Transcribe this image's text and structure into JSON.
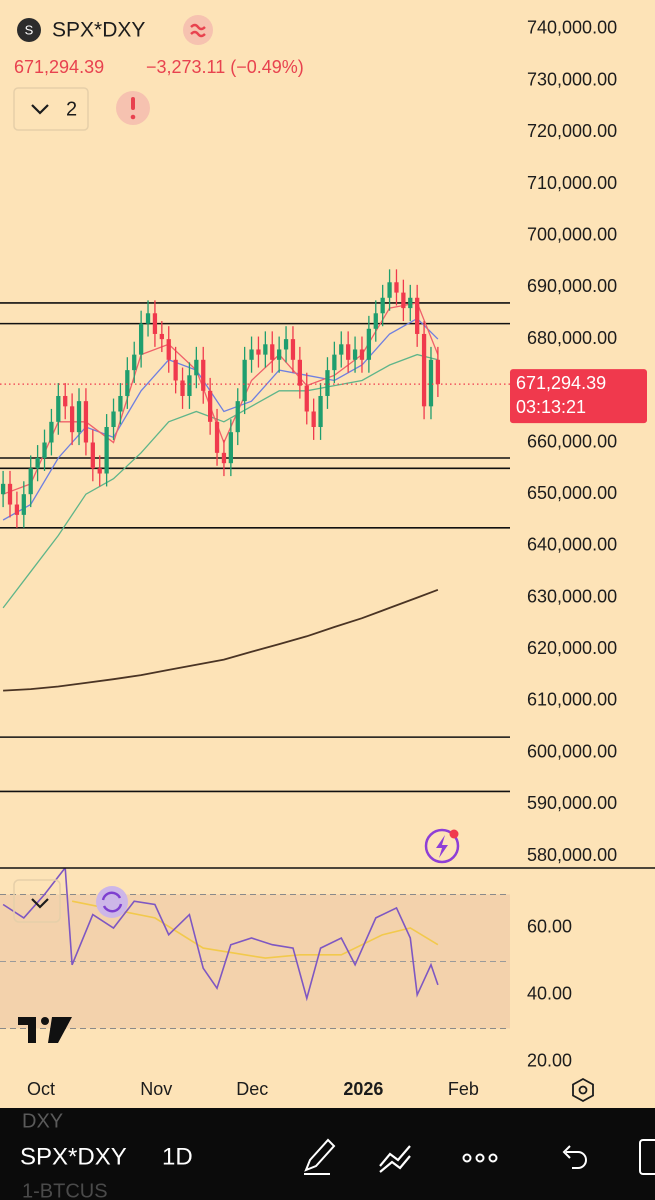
{
  "header": {
    "icon_letter": "S",
    "symbol": "SPX*DXY",
    "change": "−3,273.11 (−0.49%)",
    "indicator_count": "2"
  },
  "chart_data": [
    {
      "type": "candlestick",
      "open": [
        650000,
        652000,
        648000,
        646000,
        650000,
        655000,
        657000,
        660000,
        664000,
        669000,
        667000,
        662000,
        668000,
        660000,
        655000,
        654000,
        663000,
        666000,
        669000,
        674000,
        677000,
        683000,
        685000,
        681000,
        680000,
        676000,
        672000,
        669000,
        673000,
        676000,
        670000,
        664000,
        658000,
        656000,
        662000,
        668000,
        676000,
        678000,
        677000,
        679000,
        676000,
        678000,
        680000,
        676000,
        671000,
        666000,
        663000,
        669000,
        674000,
        677000,
        679000,
        676000,
        678000,
        676000,
        682000,
        685000,
        688000,
        691000,
        689000,
        686000,
        688000,
        681000,
        667000,
        676000
      ],
      "high": [
        654500,
        654500,
        650500,
        652500,
        657500,
        659500,
        662500,
        666500,
        671500,
        671500,
        669500,
        670500,
        670500,
        662500,
        657500,
        665500,
        668500,
        671500,
        676500,
        679500,
        685500,
        687500,
        687500,
        683500,
        682500,
        678500,
        674500,
        675500,
        678500,
        678500,
        672500,
        666500,
        660500,
        664500,
        670500,
        678500,
        680500,
        680500,
        681500,
        681500,
        680500,
        682500,
        682500,
        678500,
        673500,
        668500,
        671500,
        676500,
        679500,
        681500,
        681500,
        680500,
        680500,
        684500,
        687500,
        690500,
        693500,
        693500,
        691500,
        690500,
        690500,
        683500,
        678500,
        678500
      ],
      "low": [
        647500,
        645500,
        643500,
        643500,
        647500,
        652500,
        654500,
        657500,
        661500,
        664500,
        659500,
        659500,
        657500,
        652500,
        651500,
        651500,
        660500,
        663500,
        666500,
        671500,
        674500,
        680500,
        678500,
        677500,
        673500,
        669500,
        666500,
        666500,
        670500,
        667500,
        661500,
        655500,
        653500,
        653500,
        659500,
        665500,
        673500,
        674500,
        674500,
        673500,
        673500,
        675500,
        673500,
        668500,
        663500,
        660500,
        660500,
        666500,
        671500,
        674500,
        673500,
        673500,
        673500,
        673500,
        679500,
        682500,
        685500,
        686500,
        683500,
        683500,
        678500,
        664500,
        664500,
        668800
      ],
      "close": [
        652000,
        648000,
        646000,
        650000,
        655000,
        657000,
        660000,
        664000,
        669000,
        667000,
        662000,
        668000,
        660000,
        655000,
        654000,
        663000,
        666000,
        669000,
        674000,
        677000,
        683000,
        685000,
        681000,
        680000,
        676000,
        672000,
        669000,
        673000,
        676000,
        670000,
        664000,
        658000,
        656000,
        662000,
        668000,
        676000,
        678000,
        677000,
        679000,
        676000,
        678000,
        680000,
        676000,
        671000,
        666000,
        663000,
        669000,
        674000,
        677000,
        679000,
        676000,
        678000,
        676000,
        682000,
        685000,
        688000,
        691000,
        689000,
        686000,
        688000,
        681000,
        667000,
        676000,
        671294.39
      ],
      "up_color": "#1f9e6e",
      "down_color": "#f0394d",
      "lines": [
        {
          "color": "#f0606a",
          "x": [
            0,
            4,
            8,
            12,
            16,
            20,
            24,
            28,
            32,
            36,
            40,
            44,
            48,
            52,
            56,
            60,
            63
          ],
          "values": [
            650000,
            652000,
            664000,
            664000,
            660000,
            677000,
            679000,
            674000,
            660000,
            672000,
            677000,
            671000,
            673000,
            677000,
            686000,
            687000,
            677000
          ]
        },
        {
          "color": "#6f7fe0",
          "x": [
            0,
            4,
            8,
            12,
            16,
            20,
            24,
            28,
            32,
            36,
            40,
            44,
            48,
            52,
            56,
            60,
            63
          ],
          "values": [
            645000,
            648000,
            657000,
            663000,
            661000,
            670000,
            676000,
            674000,
            666000,
            668000,
            674000,
            673000,
            672000,
            675000,
            681000,
            684000,
            680000
          ]
        },
        {
          "color": "#5fb58a",
          "x": [
            0,
            4,
            8,
            12,
            16,
            20,
            24,
            28,
            32,
            36,
            40,
            44,
            48,
            52,
            56,
            60,
            63
          ],
          "values": [
            628000,
            635000,
            642000,
            650000,
            653000,
            658000,
            664000,
            666000,
            664000,
            667000,
            670000,
            670000,
            671000,
            672000,
            675000,
            677000,
            676000
          ]
        },
        {
          "color": "#4a3424",
          "x": [
            0,
            4,
            8,
            12,
            16,
            20,
            24,
            28,
            32,
            36,
            40,
            44,
            48,
            52,
            56,
            60,
            63
          ],
          "values": [
            612000,
            612300,
            612800,
            613500,
            614200,
            615000,
            616000,
            617000,
            618000,
            619500,
            621000,
            622500,
            624300,
            626000,
            628000,
            630000,
            631500
          ]
        }
      ],
      "levels": [
        687000,
        683000,
        657000,
        655000,
        643500,
        603000,
        592500
      ],
      "level_color": "#111111",
      "last_price": {
        "value": 671294.39,
        "label": "671,294.39"
      },
      "countdown": "03:13:21",
      "last_color": "#f0394d",
      "xlim": [
        -0.45,
        73.45
      ],
      "ylim": [
        577680,
        745610
      ],
      "yticks": [
        {
          "value": 740000,
          "label": "740,000.00"
        },
        {
          "value": 730000,
          "label": "730,000.00"
        },
        {
          "value": 720000,
          "label": "720,000.00"
        },
        {
          "value": 710000,
          "label": "710,000.00"
        },
        {
          "value": 700000,
          "label": "700,000.00"
        },
        {
          "value": 690000,
          "label": "690,000.00"
        },
        {
          "value": 680000,
          "label": "680,000.00"
        },
        {
          "value": 670000,
          "label": "670,000.00"
        },
        {
          "value": 660000,
          "label": "660,000.00"
        },
        {
          "value": 650000,
          "label": "650,000.00"
        },
        {
          "value": 640000,
          "label": "640,000.00"
        },
        {
          "value": 630000,
          "label": "630,000.00"
        },
        {
          "value": 620000,
          "label": "620,000.00"
        },
        {
          "value": 610000,
          "label": "610,000.00"
        },
        {
          "value": 600000,
          "label": "600,000.00"
        },
        {
          "value": 590000,
          "label": "590,000.00"
        },
        {
          "value": 580000,
          "label": "580,000.00"
        }
      ]
    },
    {
      "type": "line",
      "series": [
        {
          "color": "#7e57c2",
          "x": [
            0,
            3,
            6,
            9,
            10,
            13,
            16,
            19,
            22,
            24,
            27,
            29,
            31,
            33,
            36,
            39,
            42,
            44,
            46,
            49,
            51,
            54,
            57,
            59,
            60,
            62,
            63
          ],
          "values": [
            67,
            63,
            70,
            78,
            49,
            64,
            60,
            68,
            67,
            58,
            64,
            48,
            42,
            55,
            57,
            55,
            54,
            39,
            54,
            57,
            49,
            63,
            66,
            57,
            40,
            49,
            43
          ]
        },
        {
          "color": "#f2c94c",
          "x": [
            10,
            22,
            29,
            38,
            43,
            49,
            55,
            59,
            63
          ],
          "values": [
            68,
            63,
            54,
            51,
            52,
            52,
            58,
            60,
            55
          ]
        }
      ],
      "band": [
        30,
        70
      ],
      "midline": 50,
      "band_color": "#f3d2ac",
      "xlim": [
        -0.45,
        73.45
      ],
      "ylim": [
        16.1,
        77.9
      ],
      "yticks": [
        {
          "value": 60,
          "label": "60.00"
        },
        {
          "value": 40,
          "label": "40.00"
        },
        {
          "value": 20,
          "label": "20.00"
        }
      ],
      "xticks": [
        {
          "value": 5.5,
          "label": "Oct"
        },
        {
          "value": 22.2,
          "label": "Nov"
        },
        {
          "value": 36.1,
          "label": "Dec"
        },
        {
          "value": 52.2,
          "label": "2026"
        },
        {
          "value": 66.7,
          "label": "Feb"
        }
      ]
    }
  ],
  "toolbar": {
    "symbol": "SPX*DXY",
    "interval": "1D",
    "ghost_top": "DXY",
    "ghost_bottom": "1-BTCUS"
  }
}
